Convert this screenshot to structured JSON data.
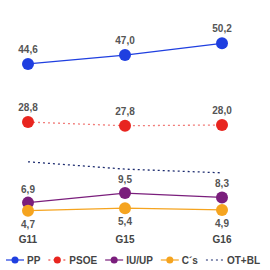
{
  "chart_data": {
    "type": "line",
    "categories": [
      "G11",
      "G15",
      "G16"
    ],
    "ylim": [
      0,
      56
    ],
    "tick_labels": "x",
    "grid": false,
    "legend": "bottom",
    "data_labels": true,
    "series": [
      {
        "name": "PP",
        "color": "#1f3fe0",
        "marker": "circle",
        "line_style": "solid",
        "values": [
          44.6,
          47.0,
          50.2
        ],
        "value_labels": [
          "44,6",
          "47,0",
          "50,2"
        ]
      },
      {
        "name": "PSOE",
        "color": "#e8251f",
        "marker": "circle",
        "line_style": "dotted",
        "values": [
          28.8,
          27.8,
          28.0
        ],
        "value_labels": [
          "28,8",
          "27,8",
          "28,0"
        ]
      },
      {
        "name": "IU/UP",
        "color": "#7a1e7c",
        "marker": "circle",
        "line_style": "solid",
        "values": [
          6.9,
          9.5,
          8.3
        ],
        "value_labels": [
          "6,9",
          "9,5",
          "8,3"
        ]
      },
      {
        "name": "C´s",
        "color": "#f5a41f",
        "marker": "circle",
        "line_style": "solid",
        "values": [
          4.7,
          5.4,
          4.9
        ],
        "value_labels": [
          "4,7",
          "5,4",
          "4,9"
        ]
      },
      {
        "name": "OT+BL",
        "color": "#1b2a6e",
        "marker": "none",
        "line_style": "dotted",
        "data_labels": false,
        "values": [
          18,
          16,
          15
        ]
      }
    ]
  }
}
